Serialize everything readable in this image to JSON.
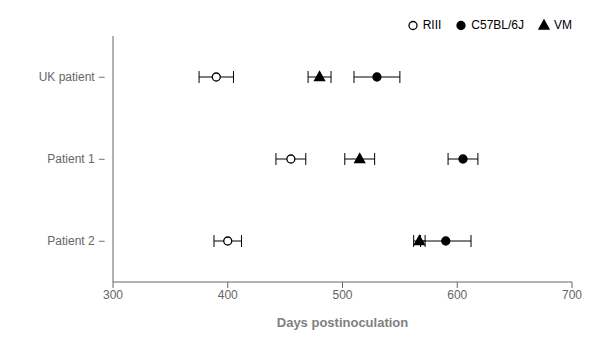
{
  "chart_data": {
    "type": "scatter",
    "xlabel": "Days postinoculation",
    "categories": [
      "UK patient −",
      "Patient 1 −",
      "Patient 2 −"
    ],
    "series": [
      {
        "name": "RIII",
        "values": [
          390,
          455,
          400
        ],
        "errors": [
          15,
          13,
          12
        ],
        "color": "#000000",
        "marker": "circle_open"
      },
      {
        "name": "C57BL/6J",
        "values": [
          530,
          605,
          590
        ],
        "errors": [
          20,
          13,
          22
        ],
        "color": "#000000",
        "marker": "circle"
      },
      {
        "name": "VM",
        "values": [
          480,
          515,
          567
        ],
        "errors": [
          10,
          13,
          5
        ],
        "color": "#000000",
        "marker": "triangle"
      }
    ],
    "xlim": [
      300,
      700
    ],
    "xticks": [
      300,
      400,
      500,
      600,
      700
    ],
    "legend": "upper right",
    "grid": false
  }
}
